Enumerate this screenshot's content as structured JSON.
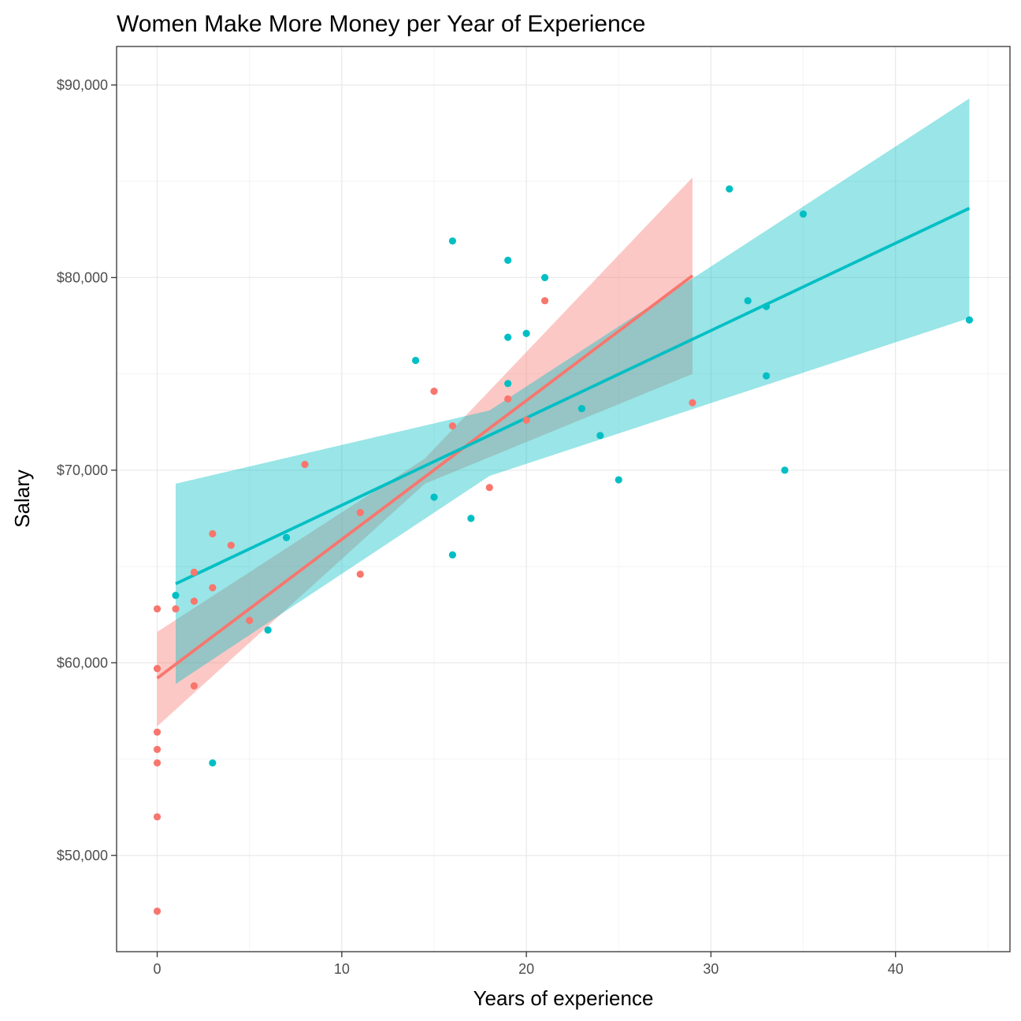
{
  "chart_data": {
    "type": "scatter",
    "title": "Women Make More Money per Year of Experience",
    "xlabel": "Years of experience",
    "ylabel": "Salary",
    "xlim": [
      -2.2,
      46.2
    ],
    "ylim": [
      45000,
      92000
    ],
    "x_ticks": [
      0,
      10,
      20,
      30,
      40
    ],
    "x_tick_labels": [
      "0",
      "10",
      "20",
      "30",
      "40"
    ],
    "y_ticks": [
      50000,
      60000,
      70000,
      80000,
      90000
    ],
    "y_tick_labels": [
      "$50,000",
      "$60,000",
      "$70,000",
      "$80,000",
      "$90,000"
    ],
    "x_minor_ticks": [
      5,
      15,
      25,
      35,
      45
    ],
    "y_minor_ticks": [
      55000,
      65000,
      75000,
      85000
    ],
    "grid": true,
    "legend": "none",
    "series": [
      {
        "color": "#F8766D",
        "points": [
          [
            0,
            62800
          ],
          [
            0,
            59700
          ],
          [
            0,
            56400
          ],
          [
            0,
            55500
          ],
          [
            0,
            54800
          ],
          [
            0,
            52000
          ],
          [
            0,
            47100
          ],
          [
            1,
            62800
          ],
          [
            2,
            58800
          ],
          [
            2,
            64700
          ],
          [
            2,
            63200
          ],
          [
            3,
            66700
          ],
          [
            3,
            63900
          ],
          [
            4,
            66100
          ],
          [
            5,
            62200
          ],
          [
            8,
            70300
          ],
          [
            11,
            67800
          ],
          [
            11,
            64600
          ],
          [
            15,
            74100
          ],
          [
            16,
            72300
          ],
          [
            18,
            69100
          ],
          [
            19,
            73700
          ],
          [
            20,
            72600
          ],
          [
            21,
            78800
          ],
          [
            29,
            73500
          ]
        ],
        "fit": {
          "x": [
            0,
            29
          ],
          "y": [
            59200,
            80100
          ]
        },
        "ribbon": {
          "x": [
            0,
            14.5,
            29
          ],
          "upper": [
            61600,
            70600,
            85200
          ],
          "lower": [
            56700,
            69300,
            75000
          ]
        }
      },
      {
        "color": "#00BFC4",
        "points": [
          [
            1,
            63500
          ],
          [
            3,
            54800
          ],
          [
            6,
            61700
          ],
          [
            7,
            66500
          ],
          [
            14,
            75700
          ],
          [
            15,
            68600
          ],
          [
            16,
            81900
          ],
          [
            16,
            65600
          ],
          [
            17,
            67500
          ],
          [
            19,
            80900
          ],
          [
            19,
            76900
          ],
          [
            19,
            74500
          ],
          [
            20,
            77100
          ],
          [
            21,
            80000
          ],
          [
            23,
            73200
          ],
          [
            24,
            71800
          ],
          [
            25,
            69500
          ],
          [
            31,
            84600
          ],
          [
            32,
            78800
          ],
          [
            33,
            78500
          ],
          [
            33,
            74900
          ],
          [
            34,
            70000
          ],
          [
            35,
            83300
          ],
          [
            44,
            77800
          ]
        ],
        "fit": {
          "x": [
            1,
            44
          ],
          "y": [
            64100,
            83600
          ]
        },
        "ribbon": {
          "x": [
            1,
            18,
            44
          ],
          "upper": [
            69300,
            73100,
            89300
          ],
          "lower": [
            58900,
            69700,
            77900
          ]
        }
      }
    ]
  }
}
